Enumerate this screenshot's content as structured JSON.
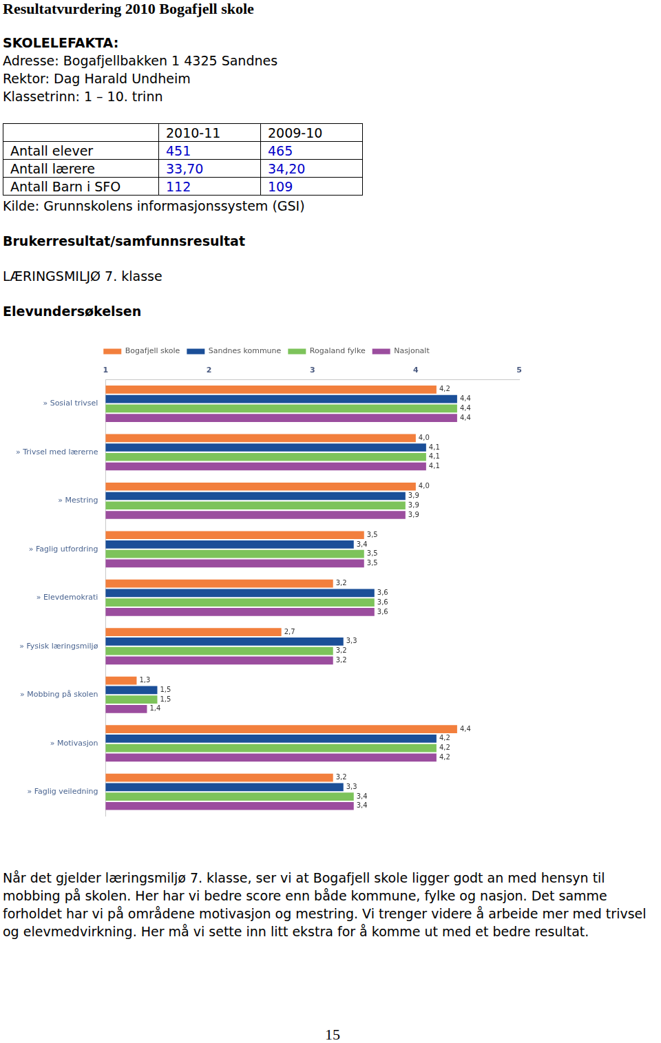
{
  "document": {
    "title": "Resultatvurdering 2010 Bogafjell skole",
    "facts_heading": "SKOLELEFAKTA:",
    "facts": [
      "Adresse: Bogafjellbakken 1 4325 Sandnes",
      "Rektor: Dag Harald Undheim",
      "Klassetrinn: 1 – 10. trinn"
    ],
    "table": {
      "header": [
        "2010-11",
        "2009-10"
      ],
      "rows": [
        [
          "Antall elever",
          "451",
          "465"
        ],
        [
          "Antall lærere",
          "33,70",
          "34,20"
        ],
        [
          "Antall Barn i SFO",
          "112",
          "109"
        ]
      ]
    },
    "source": "Kilde: Grunnskolens informasjonssystem (GSI)",
    "section_heading": "Brukerresultat/samfunnsresultat",
    "subheading": "LÆRINGSMILJØ 7. klasse",
    "survey_heading": "Elevundersøkelsen",
    "paragraph": "Når det gjelder læringsmiljø 7. klasse, ser vi at Bogafjell skole ligger godt an med hensyn til mobbing på skolen. Her har vi bedre score enn både kommune, fylke og nasjon. Det samme forholdet har vi på områdene motivasjon og mestring. Vi trenger videre å arbeide mer med trivsel og elevmedvirkning. Her må vi sette inn litt ekstra for å komme ut med et bedre resultat.",
    "page_number": "15"
  },
  "chart_data": {
    "type": "bar",
    "orientation": "horizontal",
    "categories": [
      "» Sosial trivsel",
      "» Trivsel med lærerne",
      "» Mestring",
      "» Faglig utfordring",
      "» Elevdemokrati",
      "» Fysisk læringsmiljø",
      "» Mobbing på skolen",
      "» Motivasjon",
      "» Faglig veiledning"
    ],
    "series": [
      {
        "name": "Bogafjell skole",
        "color": "#f27f3d",
        "values": [
          4.2,
          4.0,
          4.0,
          3.5,
          3.2,
          2.7,
          1.3,
          4.4,
          3.2
        ],
        "value_labels": [
          "4,2",
          "4,0",
          "4,0",
          "3,5",
          "3,2",
          "2,7",
          "1,3",
          "4,4",
          "3,2"
        ]
      },
      {
        "name": "Sandnes kommune",
        "color": "#1b4f98",
        "values": [
          4.4,
          4.1,
          3.9,
          3.4,
          3.6,
          3.3,
          1.5,
          4.2,
          3.3
        ],
        "value_labels": [
          "4,4",
          "4,1",
          "3,9",
          "3,4",
          "3,6",
          "3,3",
          "1,5",
          "4,2",
          "3,3"
        ]
      },
      {
        "name": "Rogaland fylke",
        "color": "#7dc35b",
        "values": [
          4.4,
          4.1,
          3.9,
          3.5,
          3.6,
          3.2,
          1.5,
          4.2,
          3.4
        ],
        "value_labels": [
          "4,4",
          "4,1",
          "3,9",
          "3,5",
          "3,6",
          "3,2",
          "1,5",
          "4,2",
          "3,4"
        ]
      },
      {
        "name": "Nasjonalt",
        "color": "#9b4d9e",
        "values": [
          4.4,
          4.1,
          3.9,
          3.5,
          3.6,
          3.2,
          1.4,
          4.2,
          3.4
        ],
        "value_labels": [
          "4,4",
          "4,1",
          "3,9",
          "3,5",
          "3,6",
          "3,2",
          "1,4",
          "4,2",
          "3,4"
        ]
      }
    ],
    "xlim": [
      1,
      5
    ],
    "xticks": [
      1,
      2,
      3,
      4,
      5
    ],
    "grid": false,
    "legend": "top",
    "data_labels": true
  }
}
